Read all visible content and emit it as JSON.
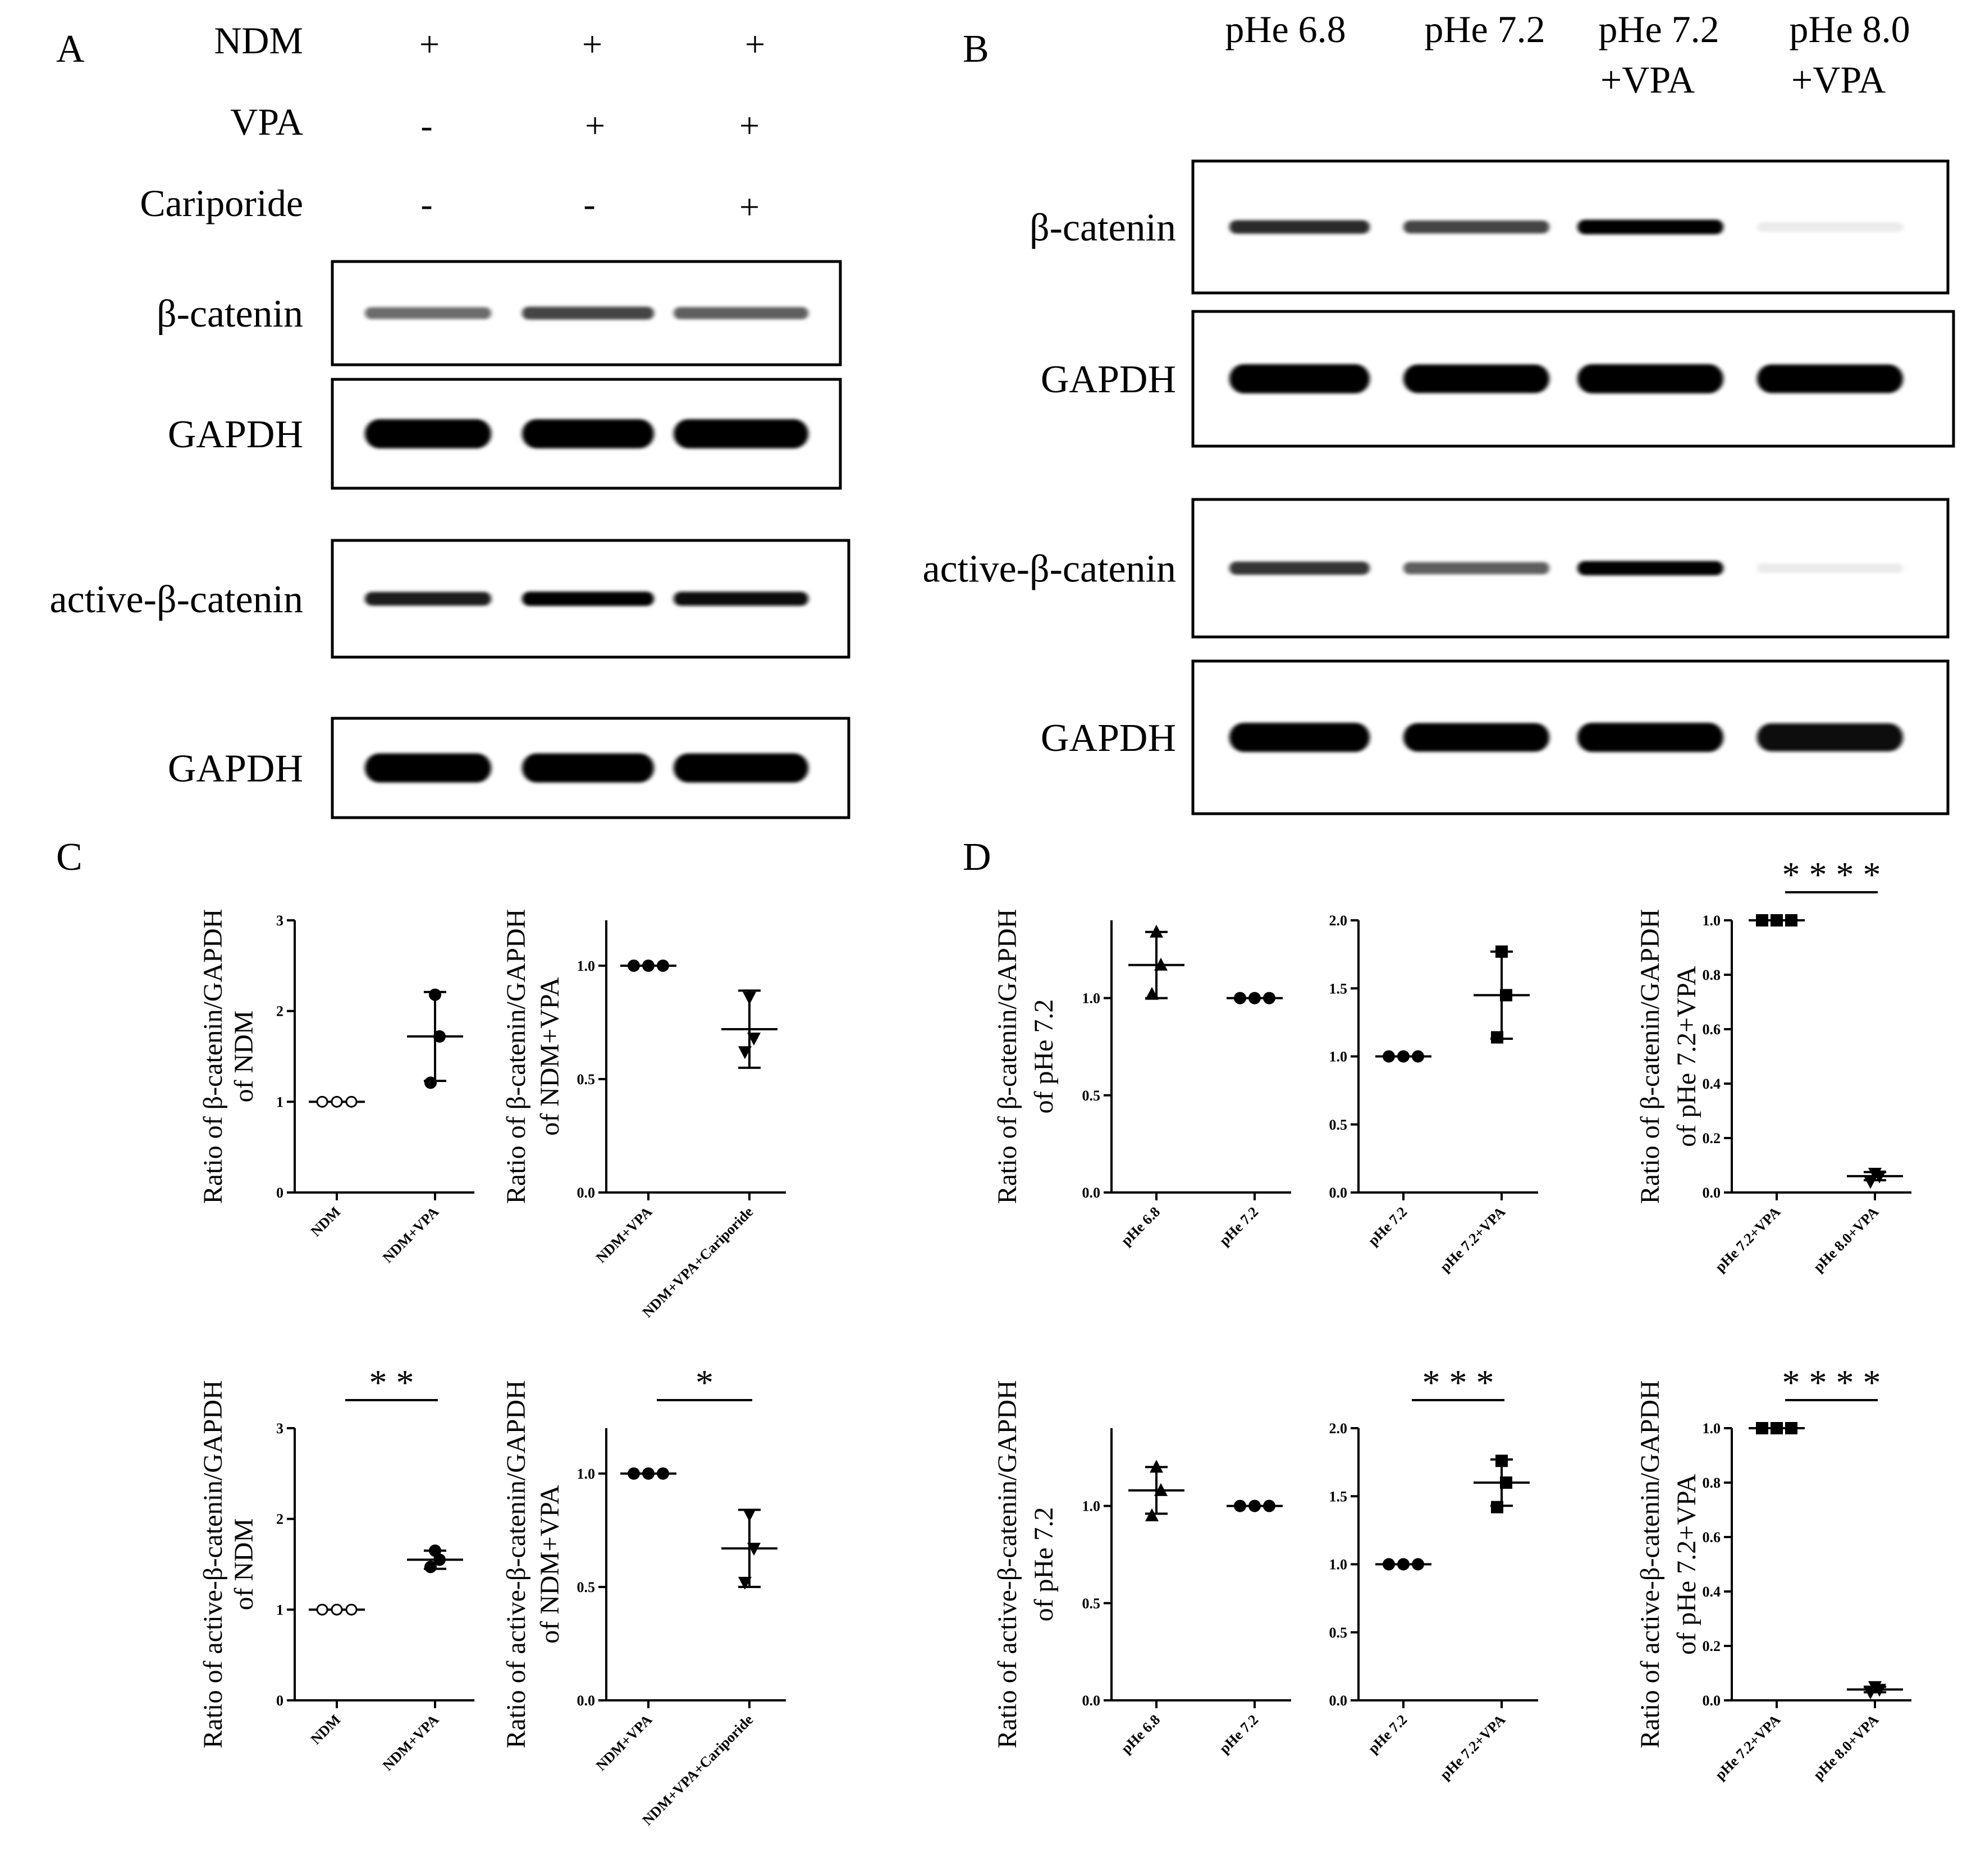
{
  "panels": {
    "A": {
      "letter": "A",
      "treatments": [
        {
          "name": "NDM",
          "signs": [
            "+",
            "+",
            "+"
          ]
        },
        {
          "name": "VPA",
          "signs": [
            "-",
            "+",
            "+"
          ]
        },
        {
          "name": "Cariporide",
          "signs": [
            "-",
            "-",
            "+"
          ]
        }
      ],
      "blots": [
        {
          "label": "β-catenin",
          "intensity": [
            0.55,
            0.7,
            0.6
          ]
        },
        {
          "label": "GAPDH",
          "intensity": [
            1.0,
            1.0,
            1.0
          ]
        },
        {
          "label": "active-β-catenin",
          "intensity": [
            0.85,
            0.95,
            0.9
          ]
        },
        {
          "label": "GAPDH",
          "intensity": [
            1.0,
            1.0,
            1.0
          ]
        }
      ]
    },
    "B": {
      "letter": "B",
      "columns": [
        {
          "line1": "pHe 6.8",
          "line2": ""
        },
        {
          "line1": "pHe 7.2",
          "line2": ""
        },
        {
          "line1": "pHe 7.2",
          "line2": "+VPA"
        },
        {
          "line1": "pHe 8.0",
          "line2": "+VPA"
        }
      ],
      "blots": [
        {
          "label": "β-catenin",
          "intensity": [
            0.8,
            0.7,
            1.0,
            0.08
          ]
        },
        {
          "label": "GAPDH",
          "intensity": [
            1.0,
            0.95,
            1.0,
            0.95
          ]
        },
        {
          "label": "active-β-catenin",
          "intensity": [
            0.75,
            0.6,
            0.95,
            0.08
          ]
        },
        {
          "label": "GAPDH",
          "intensity": [
            1.0,
            0.95,
            1.0,
            0.9
          ]
        }
      ]
    },
    "C": {
      "letter": "C"
    },
    "D": {
      "letter": "D"
    }
  },
  "chart_data": [
    {
      "id": "C1",
      "type": "scatter",
      "ylabel": [
        "Ratio of β-catenin/GAPDH",
        "of NDM"
      ],
      "categories": [
        "NDM",
        "NDM+VPA"
      ],
      "ylim": [
        0,
        3
      ],
      "yticks": [
        "0",
        "1",
        "2",
        "3"
      ],
      "points": [
        [
          1,
          1,
          1
        ],
        [
          1.21,
          1.72,
          2.18
        ]
      ],
      "mean": [
        1,
        1.72
      ],
      "sd": [
        0,
        0.49
      ],
      "markers": [
        "circle-open",
        "circle"
      ],
      "significance": ""
    },
    {
      "id": "C2",
      "type": "scatter",
      "ylabel": [
        "Ratio of β-catenin/GAPDH",
        "of NDM+VPA"
      ],
      "categories": [
        "NDM+VPA",
        "NDM+VPA+Cariporide"
      ],
      "ylim": [
        0,
        1.2
      ],
      "yticks": [
        "0.0",
        "0.5",
        "1.0"
      ],
      "points": [
        [
          1,
          1,
          1
        ],
        [
          0.62,
          0.68,
          0.86
        ]
      ],
      "mean": [
        1,
        0.72
      ],
      "sd": [
        0,
        0.17
      ],
      "markers": [
        "circle",
        "triangle-down"
      ],
      "significance": ""
    },
    {
      "id": "C3",
      "type": "scatter",
      "ylabel": [
        "Ratio of active-β-catenin/GAPDH",
        "of NDM"
      ],
      "categories": [
        "NDM",
        "NDM+VPA"
      ],
      "ylim": [
        0,
        3
      ],
      "yticks": [
        "0",
        "1",
        "2",
        "3"
      ],
      "points": [
        [
          1,
          1,
          1
        ],
        [
          1.47,
          1.55,
          1.65
        ]
      ],
      "mean": [
        1,
        1.55
      ],
      "sd": [
        0,
        0.1
      ],
      "markers": [
        "circle-open",
        "circle"
      ],
      "significance": "* *"
    },
    {
      "id": "C4",
      "type": "scatter",
      "ylabel": [
        "Ratio of active-β-catenin/GAPDH",
        "of NDM+VPA"
      ],
      "categories": [
        "NDM+VPA",
        "NDM+VPA+Cariporide"
      ],
      "ylim": [
        0,
        1.2
      ],
      "yticks": [
        "0.0",
        "0.5",
        "1.0"
      ],
      "points": [
        [
          1,
          1,
          1
        ],
        [
          0.52,
          0.67,
          0.82
        ]
      ],
      "mean": [
        1,
        0.67
      ],
      "sd": [
        0,
        0.17
      ],
      "markers": [
        "circle",
        "triangle-down"
      ],
      "significance": "*"
    },
    {
      "id": "D1",
      "type": "scatter",
      "ylabel": [
        "Ratio of β-catenin/GAPDH",
        "of pHe 7.2"
      ],
      "categories": [
        "pHe 6.8",
        "pHe 7.2"
      ],
      "ylim": [
        0,
        1.4
      ],
      "yticks": [
        "0.0",
        "0.5",
        "1.0"
      ],
      "points": [
        [
          1.02,
          1.17,
          1.34
        ],
        [
          1,
          1,
          1
        ]
      ],
      "mean": [
        1.17,
        1
      ],
      "sd": [
        0.17,
        0
      ],
      "markers": [
        "triangle-up",
        "circle"
      ],
      "significance": ""
    },
    {
      "id": "D2",
      "type": "scatter",
      "ylabel": [
        "",
        ""
      ],
      "categories": [
        "pHe 7.2",
        "pHe 7.2+VPA"
      ],
      "ylim": [
        0,
        2.0
      ],
      "yticks": [
        "0.0",
        "0.5",
        "1.0",
        "1.5",
        "2.0"
      ],
      "points": [
        [
          1,
          1,
          1
        ],
        [
          1.14,
          1.45,
          1.77
        ]
      ],
      "mean": [
        1,
        1.45
      ],
      "sd": [
        0,
        0.32
      ],
      "markers": [
        "circle",
        "square"
      ],
      "significance": ""
    },
    {
      "id": "D3",
      "type": "scatter",
      "ylabel": [
        "Ratio of β-catenin/GAPDH",
        "of pHe 7.2+VPA"
      ],
      "categories": [
        "pHe 7.2+VPA",
        "pHe 8.0+VPA"
      ],
      "ylim": [
        0,
        1.0
      ],
      "yticks": [
        "0.0",
        "0.2",
        "0.4",
        "0.6",
        "0.8",
        "1.0"
      ],
      "points": [
        [
          1,
          1,
          1
        ],
        [
          0.04,
          0.06,
          0.07
        ]
      ],
      "mean": [
        1,
        0.06
      ],
      "sd": [
        0,
        0.015
      ],
      "markers": [
        "square",
        "triangle-down"
      ],
      "significance": "* * * *"
    },
    {
      "id": "D4",
      "type": "scatter",
      "ylabel": [
        "Ratio of  active-β-catenin/GAPDH",
        "of pHe 7.2"
      ],
      "categories": [
        "pHe 6.8",
        "pHe 7.2"
      ],
      "ylim": [
        0,
        1.4
      ],
      "yticks": [
        "0.0",
        "0.5",
        "1.0"
      ],
      "points": [
        [
          0.95,
          1.08,
          1.2
        ],
        [
          1,
          1,
          1
        ]
      ],
      "mean": [
        1.08,
        1
      ],
      "sd": [
        0.12,
        0
      ],
      "markers": [
        "triangle-up",
        "circle"
      ],
      "significance": ""
    },
    {
      "id": "D5",
      "type": "scatter",
      "ylabel": [
        "",
        ""
      ],
      "categories": [
        "pHe 7.2",
        "pHe 7.2+VPA"
      ],
      "ylim": [
        0,
        2.0
      ],
      "yticks": [
        "0.0",
        "0.5",
        "1.0",
        "1.5",
        "2.0"
      ],
      "points": [
        [
          1,
          1,
          1
        ],
        [
          1.42,
          1.6,
          1.76
        ]
      ],
      "mean": [
        1,
        1.6
      ],
      "sd": [
        0,
        0.17
      ],
      "markers": [
        "circle",
        "square"
      ],
      "significance": "* * *"
    },
    {
      "id": "D6",
      "type": "scatter",
      "ylabel": [
        "Ratio of  active-β-catenin/GAPDH",
        "of pHe 7.2+VPA"
      ],
      "categories": [
        "pHe 7.2+VPA",
        "pHe 8.0+VPA"
      ],
      "ylim": [
        0,
        1.0
      ],
      "yticks": [
        "0.0",
        "0.2",
        "0.4",
        "0.6",
        "0.8",
        "1.0"
      ],
      "points": [
        [
          1,
          1,
          1
        ],
        [
          0.03,
          0.04,
          0.05
        ]
      ],
      "mean": [
        1,
        0.04
      ],
      "sd": [
        0,
        0.01
      ],
      "markers": [
        "square",
        "triangle-down"
      ],
      "significance": "* * * *"
    }
  ]
}
